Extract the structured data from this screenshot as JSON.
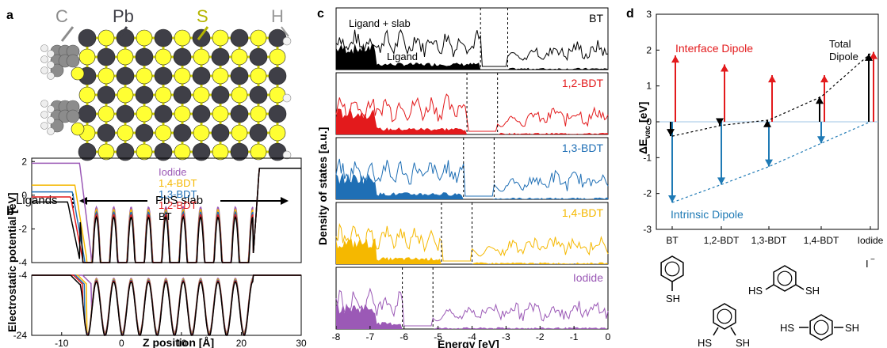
{
  "panels": {
    "a": {
      "label": "a",
      "atoms": [
        "C",
        "Pb",
        "S",
        "H"
      ],
      "colors": {
        "C": "#8c8c8c",
        "Pb": "#3f3f47",
        "S": "#ffff33",
        "H": "#ffffff",
        "bond": "#d6d600"
      },
      "ligands_label": "Ligands",
      "slab_label": "PbS slab"
    },
    "b": {
      "label": "b",
      "ylabel": "Electrostatic potential [eV]",
      "xlabel": "Z position [Å]"
    },
    "c": {
      "label": "c",
      "ylabel": "Density of states [a.u.]",
      "xlabel": "Energy [eV]",
      "ligand_slab_label": "Ligand + slab",
      "ligand_label": "Ligand"
    },
    "d": {
      "label": "d",
      "ylabel_main": "ΔE",
      "ylabel_sub": "vac",
      "ylabel_unit": " [eV]",
      "interface_label": "Interface Dipole",
      "total_label_1": "Total",
      "total_label_2": "Dipole",
      "intrinsic_label": "Intrinsic Dipole",
      "iodide_ion": "I",
      "iodide_charge": "−",
      "sh": "SH",
      "hs": "HS"
    }
  },
  "chart_data": [
    {
      "type": "line",
      "panel": "b",
      "x_range": [
        -15,
        30
      ],
      "x_ticks": [
        -10,
        0,
        10,
        20,
        30
      ],
      "upper": {
        "ylim": [
          -4,
          2.2
        ],
        "y_ticks": [
          2,
          0,
          -2,
          -4
        ]
      },
      "lower": {
        "ylim": [
          -24,
          -4
        ],
        "y_ticks": [
          -4,
          -24
        ]
      },
      "series": [
        {
          "name": "Iodide",
          "color": "#9b59b6",
          "plateau": 1.9,
          "step_end": -5.0
        },
        {
          "name": "1,4-BDT",
          "color": "#f5b800",
          "plateau": 0.6,
          "step_end": -5.8
        },
        {
          "name": "1,3-BDT",
          "color": "#1f6fb5",
          "plateau": 0.2,
          "step_end": -6.2
        },
        {
          "name": "1,2-BDT",
          "color": "#e31a1c",
          "plateau": -0.1,
          "step_end": -6.5
        },
        {
          "name": "BT",
          "color": "#000000",
          "plateau": -0.4,
          "step_end": -7.0
        }
      ],
      "right_plateau": 1.6
    },
    {
      "type": "area",
      "panel": "c",
      "x_range": [
        -8,
        0
      ],
      "x_ticks": [
        -8,
        -7,
        -6,
        -5,
        -4,
        -3,
        -2,
        -1,
        0
      ],
      "series": [
        {
          "name": "BT",
          "color": "#000000",
          "gap": [
            -3.75,
            -2.95
          ]
        },
        {
          "name": "1,2-BDT",
          "color": "#e31a1c",
          "gap": [
            -4.15,
            -3.25
          ]
        },
        {
          "name": "1,3-BDT",
          "color": "#1f6fb5",
          "gap": [
            -4.25,
            -3.35
          ]
        },
        {
          "name": "1,4-BDT",
          "color": "#f5b800",
          "gap": [
            -4.9,
            -4.0
          ]
        },
        {
          "name": "Iodide",
          "color": "#9b59b6",
          "gap": [
            -6.05,
            -5.15
          ]
        }
      ]
    },
    {
      "type": "scatter",
      "panel": "d",
      "categories": [
        "BT",
        "1,2-BDT",
        "1,3-BDT",
        "1,4-BDT",
        "Iodide"
      ],
      "ylim": [
        -3,
        3
      ],
      "y_ticks": [
        3,
        2,
        1,
        0,
        -1,
        -2,
        -3
      ],
      "interface_dipole": [
        1.85,
        1.6,
        1.3,
        1.3,
        1.95
      ],
      "intrinsic_dipole": [
        -2.25,
        -1.75,
        -1.25,
        -0.6,
        0
      ],
      "total_dipole": [
        -0.4,
        -0.1,
        0.05,
        0.7,
        1.9
      ],
      "colors": {
        "interface": "#e31a1c",
        "intrinsic": "#1f7ab5",
        "total": "#000000"
      }
    }
  ]
}
